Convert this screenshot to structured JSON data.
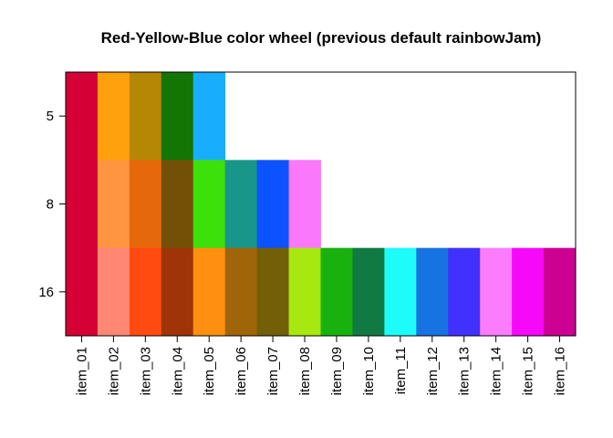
{
  "chart_data": {
    "type": "heatmap",
    "title": "Red-Yellow-Blue color wheel (previous default rainbowJam)",
    "xlabel": "",
    "ylabel": "",
    "x_categories": [
      "item_01",
      "item_02",
      "item_03",
      "item_04",
      "item_05",
      "item_06",
      "item_07",
      "item_08",
      "item_09",
      "item_10",
      "item_11",
      "item_12",
      "item_13",
      "item_14",
      "item_15",
      "item_16"
    ],
    "y_categories": [
      "5",
      "8",
      "16"
    ],
    "grid": false,
    "legend": "none",
    "rows": [
      {
        "n": "5",
        "colors": [
          "#D40036",
          "#FFA10C",
          "#B68605",
          "#127504",
          "#19AEFD"
        ]
      },
      {
        "n": "8",
        "colors": [
          "#D40036",
          "#FF9540",
          "#E5690A",
          "#744F06",
          "#3CE00B",
          "#19968A",
          "#0D52FF",
          "#FA78FB"
        ]
      },
      {
        "n": "16",
        "colors": [
          "#D40036",
          "#FF8774",
          "#FF4B10",
          "#9E3408",
          "#FF8F0E",
          "#A06509",
          "#725F08",
          "#A7E810",
          "#19B10D",
          "#117A43",
          "#1EFCFA",
          "#1873E2",
          "#4131FF",
          "#FB7DFD",
          "#F609F9",
          "#CC0192"
        ]
      }
    ]
  }
}
